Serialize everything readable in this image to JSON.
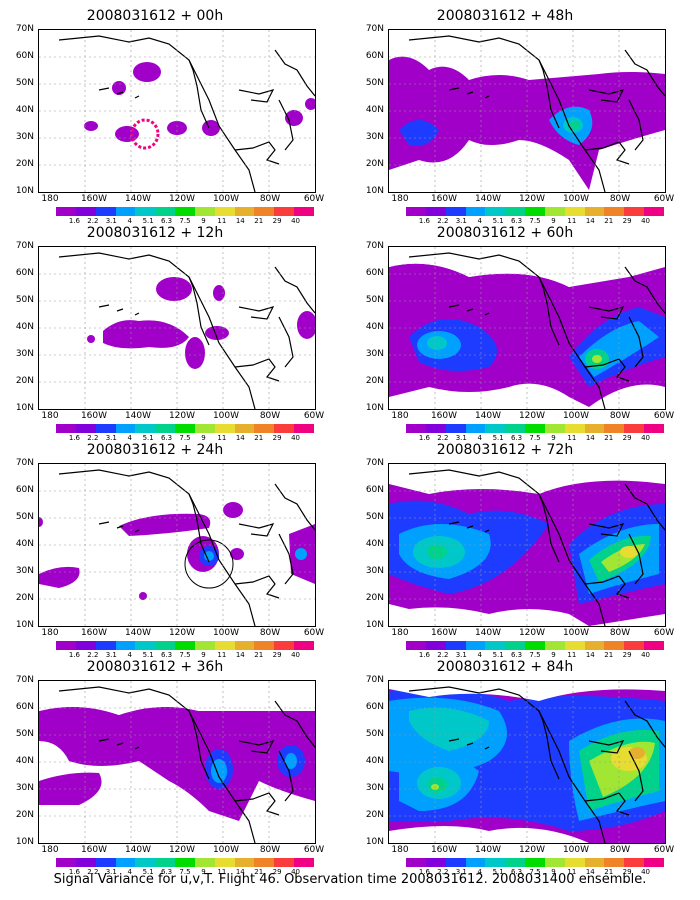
{
  "panels": [
    {
      "title": "2008031612 + 00h"
    },
    {
      "title": "2008031612 + 48h"
    },
    {
      "title": "2008031612 + 12h"
    },
    {
      "title": "2008031612 + 60h"
    },
    {
      "title": "2008031612 + 24h"
    },
    {
      "title": "2008031612 + 72h"
    },
    {
      "title": "2008031612 + 36h"
    },
    {
      "title": "2008031612 + 84h"
    }
  ],
  "lat_labels": [
    "70N",
    "60N",
    "50N",
    "40N",
    "30N",
    "20N",
    "10N"
  ],
  "lon_labels": [
    "180",
    "160W",
    "140W",
    "120W",
    "100W",
    "80W",
    "60W"
  ],
  "colorbar": {
    "labels": [
      "1.6",
      "2.2",
      "3.1",
      "4",
      "5.1",
      "6.3",
      "7.5",
      "9",
      "11",
      "14",
      "21",
      "29",
      "40"
    ],
    "colors": [
      "#a000c8",
      "#8200dc",
      "#1e3cff",
      "#00a0ff",
      "#00c8c8",
      "#00d28c",
      "#00dc00",
      "#a0e632",
      "#e6dc32",
      "#e6af2d",
      "#f08228",
      "#fa3c3c",
      "#f00082"
    ]
  },
  "caption": "Signal Variance for u,v,T. Flight 46. Observation time 2008031612. 2008031400 ensemble."
}
